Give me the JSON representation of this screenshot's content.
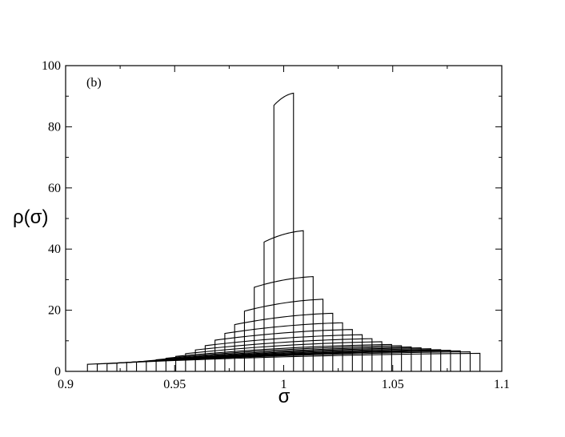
{
  "chart_data": {
    "type": "line",
    "title": "",
    "panel_label": "(b)",
    "xlabel": "σ",
    "ylabel": "ρ(σ)",
    "xlim": [
      0.9,
      1.1
    ],
    "ylim": [
      0,
      100
    ],
    "xticks": [
      0.9,
      0.95,
      1,
      1.05,
      1.1
    ],
    "xtick_labels": [
      "0.9",
      "0.95",
      "1",
      "1.05",
      "1.1"
    ],
    "yticks": [
      0,
      20,
      40,
      60,
      80,
      100
    ],
    "ytick_labels": [
      "0",
      "20",
      "40",
      "60",
      "80",
      "100"
    ],
    "grid": false,
    "legend": "none",
    "series": [
      {
        "x": [
          0.9955,
          1.0045
        ],
        "y": [
          87,
          91
        ]
      },
      {
        "x": [
          0.991,
          1.009
        ],
        "y": [
          42.3,
          46.0
        ]
      },
      {
        "x": [
          0.9865,
          1.0135
        ],
        "y": [
          27.5,
          31.0
        ]
      },
      {
        "x": [
          0.982,
          1.018
        ],
        "y": [
          19.7,
          23.6
        ]
      },
      {
        "x": [
          0.9775,
          1.0225
        ],
        "y": [
          15.3,
          19.0
        ]
      },
      {
        "x": [
          0.973,
          1.027
        ],
        "y": [
          12.4,
          15.9
        ]
      },
      {
        "x": [
          0.9685,
          1.0315
        ],
        "y": [
          10.2,
          13.7
        ]
      },
      {
        "x": [
          0.964,
          1.036
        ],
        "y": [
          8.4,
          12.0
        ]
      },
      {
        "x": [
          0.9595,
          1.0405
        ],
        "y": [
          7.0,
          10.7
        ]
      },
      {
        "x": [
          0.955,
          1.045
        ],
        "y": [
          5.8,
          9.7
        ]
      },
      {
        "x": [
          0.9505,
          1.0495
        ],
        "y": [
          4.9,
          8.8
        ]
      },
      {
        "x": [
          0.946,
          1.054
        ],
        "y": [
          4.3,
          8.4
        ]
      },
      {
        "x": [
          0.9415,
          1.0585
        ],
        "y": [
          3.8,
          8.0
        ]
      },
      {
        "x": [
          0.937,
          1.063
        ],
        "y": [
          3.4,
          7.7
        ]
      },
      {
        "x": [
          0.9325,
          1.0675
        ],
        "y": [
          3.1,
          7.4
        ]
      },
      {
        "x": [
          0.928,
          1.072
        ],
        "y": [
          2.9,
          7.1
        ]
      },
      {
        "x": [
          0.9235,
          1.0765
        ],
        "y": [
          2.7,
          6.9
        ]
      },
      {
        "x": [
          0.919,
          1.081
        ],
        "y": [
          2.5,
          6.7
        ]
      },
      {
        "x": [
          0.9145,
          1.0855
        ],
        "y": [
          2.4,
          6.4
        ]
      },
      {
        "x": [
          0.91,
          1.09
        ],
        "y": [
          2.3,
          5.9
        ]
      }
    ]
  }
}
